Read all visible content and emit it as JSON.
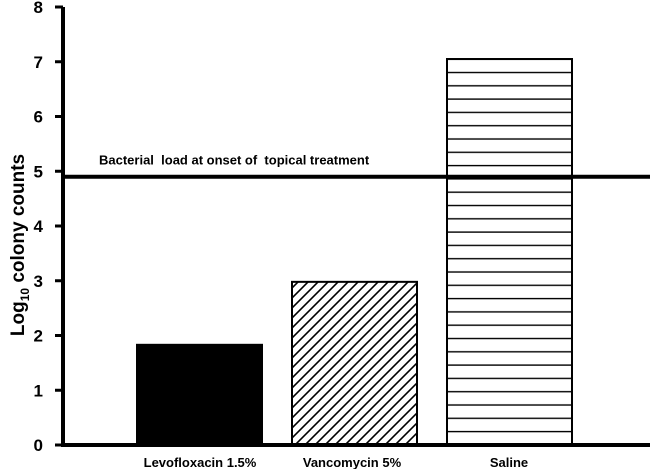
{
  "chart_data": {
    "type": "bar",
    "categories": [
      "Levofloxacin 1.5%",
      "Vancomycin 5%",
      "Saline"
    ],
    "values": [
      1.83,
      2.98,
      7.05
    ],
    "fills": [
      "solid",
      "diagonal-hatch",
      "horizontal-lines"
    ],
    "ylabel_main": "Log",
    "ylabel_sub": "10",
    "ylabel_rest": " colony counts",
    "ylim": [
      0,
      8
    ],
    "yticks": [
      0,
      1,
      2,
      3,
      4,
      5,
      6,
      7,
      8
    ],
    "reference_line": {
      "value": 4.9,
      "label": "Bacterial  load at onset of  topical treatment"
    },
    "grid": false,
    "colors": {
      "ink": "#000000",
      "background": "#ffffff"
    }
  }
}
